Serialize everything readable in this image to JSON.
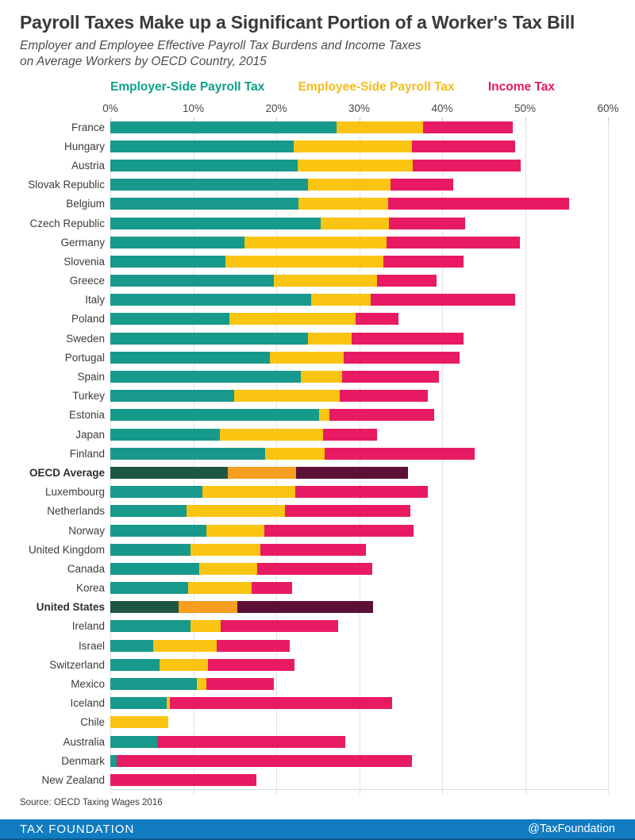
{
  "title": "Payroll Taxes Make up a Significant Portion of a Worker's Tax Bill",
  "subtitle_line1": "Employer and Employee Effective Payroll Tax Burdens and Income Taxes",
  "subtitle_line2": "on Average Workers by OECD Country, 2015",
  "legend": [
    {
      "label": "Employer-Side Payroll Tax",
      "color": "#0DA189"
    },
    {
      "label": "Employee-Side Payroll Tax",
      "color": "#F5BC1C"
    },
    {
      "label": "Income Tax",
      "color": "#E8195F"
    }
  ],
  "source": "Source: OECD Taxing Wages 2016",
  "footer": {
    "brand": "TAX FOUNDATION",
    "handle": "@TaxFoundation",
    "color": "#117CC2"
  },
  "chart_data": {
    "type": "bar",
    "orientation": "horizontal",
    "stacked": true,
    "unit": "percent of total labor cost",
    "xlim": [
      0,
      60
    ],
    "x_ticks": [
      "0%",
      "10%",
      "20%",
      "30%",
      "40%",
      "50%",
      "60%"
    ],
    "grid": true,
    "series_names": [
      "Employer-Side Payroll Tax",
      "Employee-Side Payroll Tax",
      "Income Tax"
    ],
    "colors": {
      "employer": "#17998B",
      "employee": "#F9C412",
      "income": "#E91A64"
    },
    "highlight_colors": {
      "employer": "#1E5741",
      "employee": "#F59E1F",
      "income": "#5C1038"
    },
    "rows": [
      {
        "country": "France",
        "employer": 27.3,
        "employee": 10.4,
        "income": 10.8
      },
      {
        "country": "Hungary",
        "employer": 22.1,
        "employee": 14.3,
        "income": 12.4
      },
      {
        "country": "Austria",
        "employer": 22.6,
        "employee": 13.9,
        "income": 13.0
      },
      {
        "country": "Slovak Republic",
        "employer": 23.8,
        "employee": 10.0,
        "income": 7.5
      },
      {
        "country": "Belgium",
        "employer": 22.7,
        "employee": 10.8,
        "income": 21.8
      },
      {
        "country": "Czech Republic",
        "employer": 25.4,
        "employee": 8.2,
        "income": 9.2
      },
      {
        "country": "Germany",
        "employer": 16.2,
        "employee": 17.1,
        "income": 16.1
      },
      {
        "country": "Slovenia",
        "employer": 13.9,
        "employee": 19.0,
        "income": 9.7
      },
      {
        "country": "Greece",
        "employer": 19.7,
        "employee": 12.5,
        "income": 7.1
      },
      {
        "country": "Italy",
        "employer": 24.2,
        "employee": 7.2,
        "income": 17.4
      },
      {
        "country": "Poland",
        "employer": 14.4,
        "employee": 15.2,
        "income": 5.1
      },
      {
        "country": "Sweden",
        "employer": 23.8,
        "employee": 5.3,
        "income": 13.5
      },
      {
        "country": "Portugal",
        "employer": 19.2,
        "employee": 8.9,
        "income": 14.0
      },
      {
        "country": "Spain",
        "employer": 23.0,
        "employee": 4.9,
        "income": 11.7
      },
      {
        "country": "Turkey",
        "employer": 14.9,
        "employee": 12.8,
        "income": 10.6
      },
      {
        "country": "Estonia",
        "employer": 25.2,
        "employee": 1.2,
        "income": 12.6
      },
      {
        "country": "Japan",
        "employer": 13.2,
        "employee": 12.4,
        "income": 6.6
      },
      {
        "country": "Finland",
        "employer": 18.7,
        "employee": 7.1,
        "income": 18.1
      },
      {
        "country": "OECD Average",
        "employer": 14.2,
        "employee": 8.2,
        "income": 13.5,
        "highlight": true
      },
      {
        "country": "Luxembourg",
        "employer": 11.1,
        "employee": 11.2,
        "income": 16.0
      },
      {
        "country": "Netherlands",
        "employer": 9.2,
        "employee": 11.9,
        "income": 15.1
      },
      {
        "country": "Norway",
        "employer": 11.6,
        "employee": 7.0,
        "income": 18.0
      },
      {
        "country": "United Kingdom",
        "employer": 9.7,
        "employee": 8.4,
        "income": 12.7
      },
      {
        "country": "Canada",
        "employer": 10.7,
        "employee": 7.0,
        "income": 13.9
      },
      {
        "country": "Korea",
        "employer": 9.4,
        "employee": 7.6,
        "income": 4.9
      },
      {
        "country": "United States",
        "employer": 8.2,
        "employee": 7.1,
        "income": 16.4,
        "highlight": true
      },
      {
        "country": "Ireland",
        "employer": 9.7,
        "employee": 3.6,
        "income": 14.2
      },
      {
        "country": "Israel",
        "employer": 5.2,
        "employee": 7.6,
        "income": 8.8
      },
      {
        "country": "Switzerland",
        "employer": 5.9,
        "employee": 5.9,
        "income": 10.4
      },
      {
        "country": "Mexico",
        "employer": 10.4,
        "employee": 1.2,
        "income": 8.1
      },
      {
        "country": "Iceland",
        "employer": 6.8,
        "employee": 0.4,
        "income": 26.8
      },
      {
        "country": "Chile",
        "employer": 0,
        "employee": 7.0,
        "income": 0
      },
      {
        "country": "Australia",
        "employer": 5.6,
        "employee": 0,
        "income": 22.7
      },
      {
        "country": "Denmark",
        "employer": 0.8,
        "employee": 0,
        "income": 35.6
      },
      {
        "country": "New Zealand",
        "employer": 0,
        "employee": 0,
        "income": 17.6
      }
    ]
  }
}
